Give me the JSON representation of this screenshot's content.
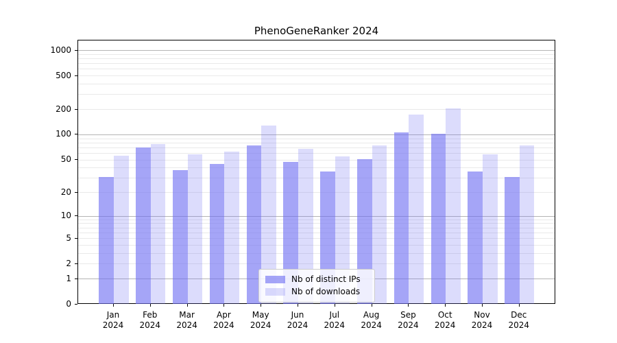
{
  "figure": {
    "background": "#ffffff"
  },
  "chart_data": {
    "type": "bar",
    "title": "PhenoGeneRanker 2024",
    "categories": [
      "Jan 2024",
      "Feb 2024",
      "Mar 2024",
      "Apr 2024",
      "May 2024",
      "Jun 2024",
      "Jul 2024",
      "Aug 2024",
      "Sep 2024",
      "Oct 2024",
      "Nov 2024",
      "Dec 2024"
    ],
    "series": [
      {
        "name": "Nb of distinct IPs",
        "color": "#6e6ef2",
        "alpha": 0.62,
        "values": [
          31,
          70,
          37,
          44,
          74,
          47,
          36,
          51,
          105,
          102,
          36,
          31
        ]
      },
      {
        "name": "Nb of downloads",
        "color": "#6e6ef2",
        "alpha": 0.24,
        "values": [
          56,
          76,
          58,
          62,
          127,
          67,
          54,
          74,
          173,
          204,
          58,
          74
        ]
      }
    ],
    "xlabel": "",
    "ylabel": "",
    "yscale": "log10(v+1)",
    "yticks": [
      0,
      1,
      2,
      5,
      10,
      20,
      50,
      100,
      200,
      500,
      1000
    ],
    "ylim": [
      0,
      1300
    ],
    "grid": "horizontal",
    "grid_major_color": "#b4b4b4",
    "grid_minor_color": "#e9e9e9",
    "axis_color": "#000000",
    "legend_position": "lower-center"
  }
}
